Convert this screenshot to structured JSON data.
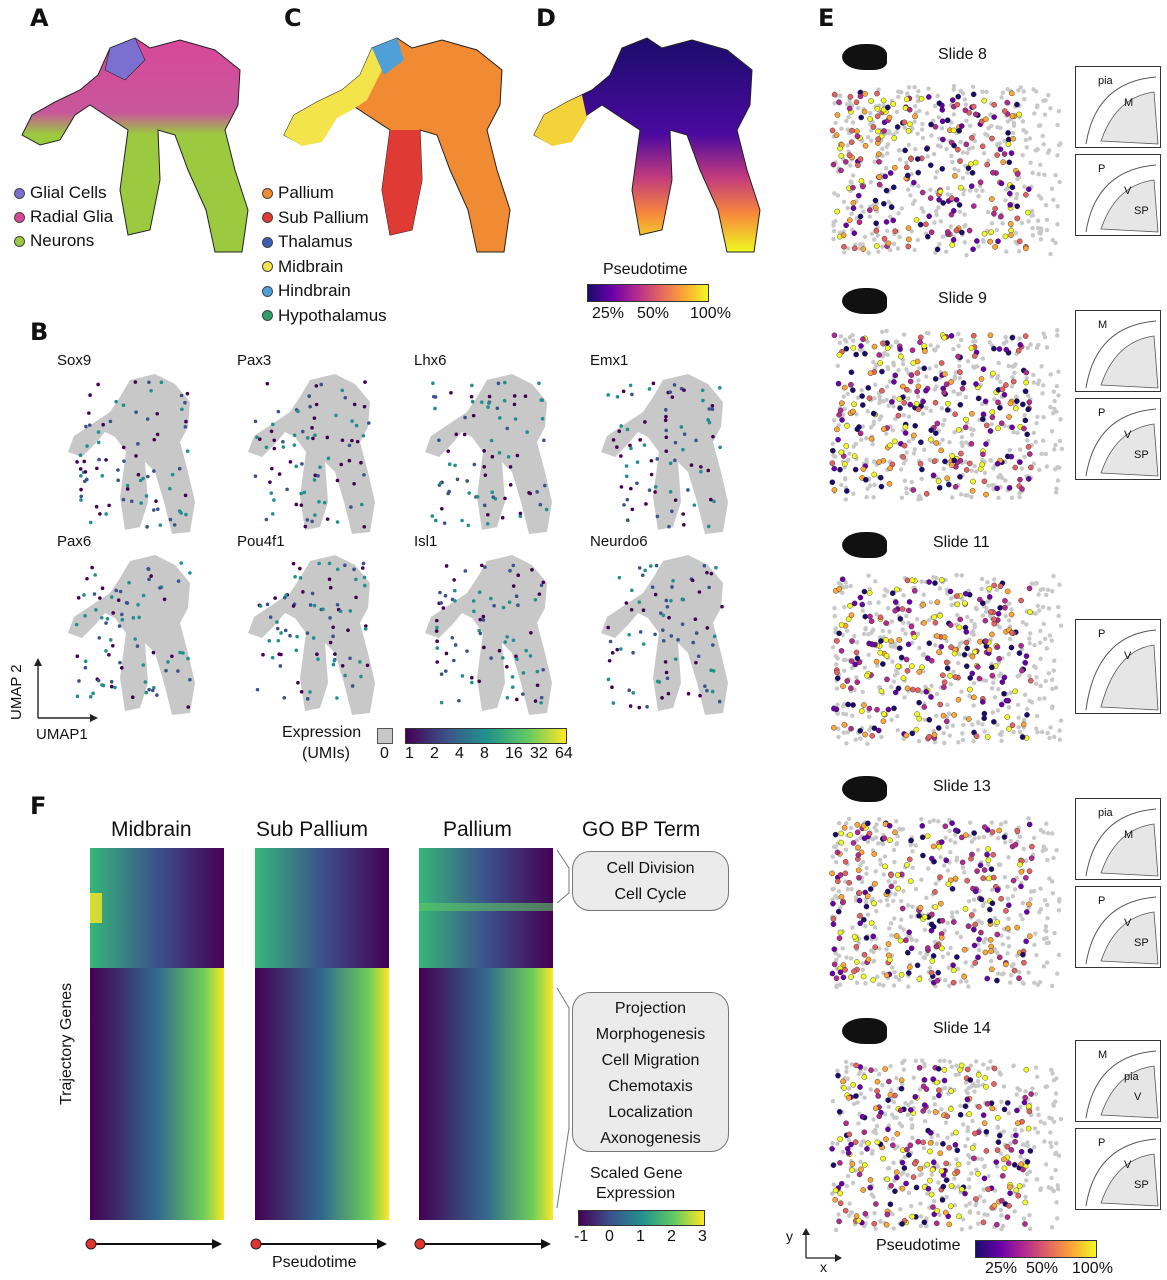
{
  "panels": {
    "a": "A",
    "b": "B",
    "c": "C",
    "d": "D",
    "e": "E",
    "f": "F"
  },
  "panel_a_legend": [
    {
      "label": "Glial Cells",
      "color": "#7b6fd0"
    },
    {
      "label": "Radial Glia",
      "color": "#d9479a"
    },
    {
      "label": "Neurons",
      "color": "#9bc93f"
    }
  ],
  "panel_c_legend": [
    {
      "label": "Pallium",
      "color": "#f08a33"
    },
    {
      "label": "Sub Pallium",
      "color": "#df3a34"
    },
    {
      "label": "Thalamus",
      "color": "#3a5fb5"
    },
    {
      "label": "Midbrain",
      "color": "#f2e44a"
    },
    {
      "label": "Hindbrain",
      "color": "#4f9fd8"
    },
    {
      "label": "Hypothalamus",
      "color": "#2f9e6a"
    }
  ],
  "panel_d": {
    "colorbar_title": "Pseudotime",
    "ticks": [
      "25%",
      "50%",
      "100%"
    ]
  },
  "panel_b": {
    "genes_row1": [
      "Sox9",
      "Pax3",
      "Lhx6",
      "Emx1"
    ],
    "genes_row2": [
      "Pax6",
      "Pou4f1",
      "Isl1",
      "Neurdo6"
    ],
    "axis_y": "UMAP 2",
    "axis_x": "UMAP1",
    "expression_title": "Expression",
    "expression_unit": "(UMIs)",
    "zero_label": "0",
    "ticks": [
      "1",
      "2",
      "4",
      "8",
      "16",
      "32",
      "64"
    ]
  },
  "panel_e": {
    "slides": [
      {
        "title": "Slide 8",
        "insets": [
          [
            "pia",
            "M"
          ],
          [
            "P",
            "V",
            "SP"
          ]
        ]
      },
      {
        "title": "Slide 9",
        "insets": [
          [
            "M"
          ],
          [
            "P",
            "V",
            "SP"
          ]
        ]
      },
      {
        "title": "Slide 11",
        "insets": [
          [
            "P",
            "V"
          ]
        ]
      },
      {
        "title": "Slide 13",
        "insets": [
          [
            "pia",
            "M"
          ],
          [
            "P",
            "V",
            "SP"
          ]
        ]
      },
      {
        "title": "Slide 14",
        "insets": [
          [
            "M",
            "pia",
            "V"
          ],
          [
            "P",
            "V",
            "SP"
          ]
        ]
      }
    ],
    "axis_y": "y",
    "axis_x": "x",
    "colorbar_title": "Pseudotime",
    "ticks": [
      "25%",
      "50%",
      "100%"
    ]
  },
  "panel_f": {
    "titles": [
      "Midbrain",
      "Sub Pallium",
      "Pallium",
      "GO BP Term"
    ],
    "ylabel": "Trajectory Genes",
    "xlabel": "Pseudotime",
    "go_terms_top": [
      "Cell Division",
      "Cell Cycle"
    ],
    "go_terms_bottom": [
      "Projection",
      "Morphogenesis",
      "Cell Migration",
      "Chemotaxis",
      "Localization",
      "Axonogenesis"
    ],
    "colorbar_title_1": "Scaled Gene",
    "colorbar_title_2": "Expression",
    "ticks": [
      "-1",
      "0",
      "1",
      "2",
      "3"
    ]
  },
  "colors": {
    "viridis": [
      "#440154",
      "#3b528b",
      "#21908d",
      "#5dc863",
      "#fde725"
    ],
    "plasma": [
      "#1b0c6b",
      "#6a00a8",
      "#b12a90",
      "#e16462",
      "#fca636",
      "#f0f921"
    ],
    "grey": "#c8c8c8"
  }
}
